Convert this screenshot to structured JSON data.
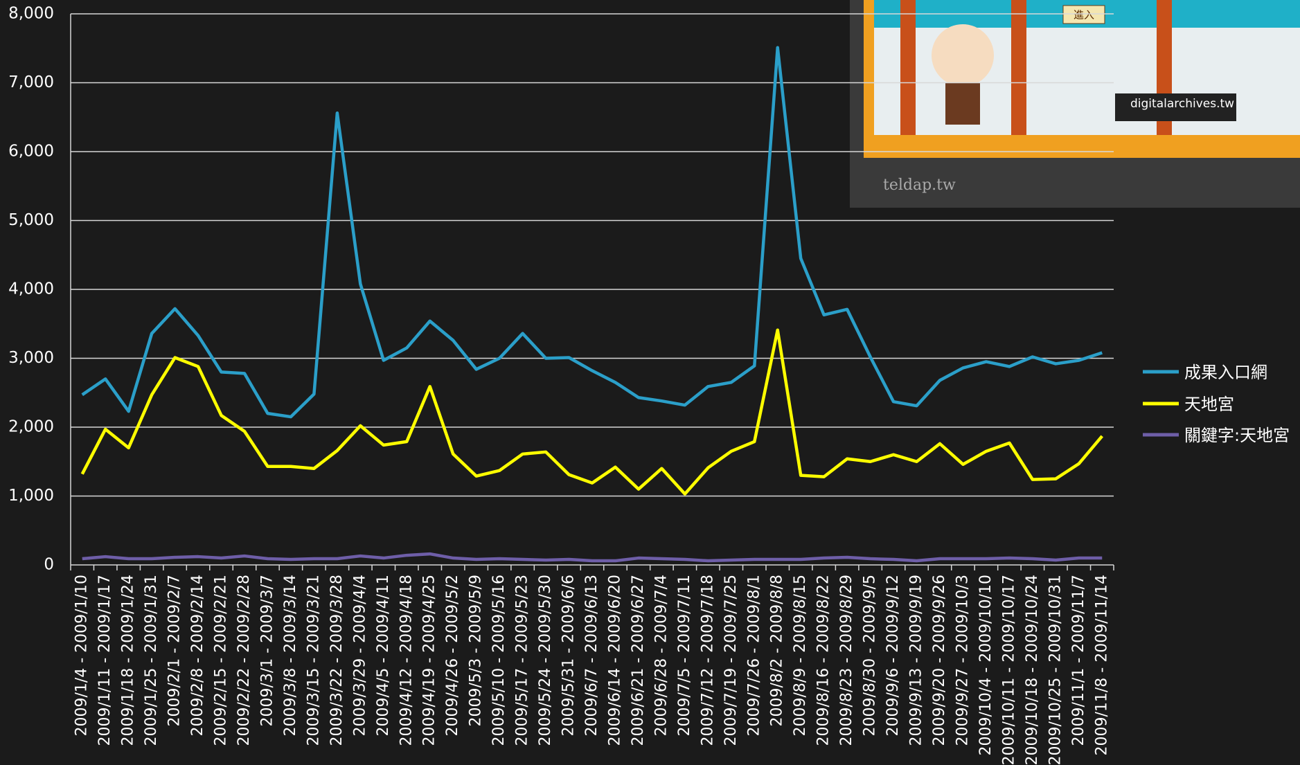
{
  "chart_data": {
    "type": "line",
    "categories": [
      "2009/1/4 - 2009/1/10",
      "2009/1/11 - 2009/1/17",
      "2009/1/18 - 2009/1/24",
      "2009/1/25 - 2009/1/31",
      "2009/2/1 - 2009/2/7",
      "2009/2/8 - 2009/2/14",
      "2009/2/15 - 2009/2/21",
      "2009/2/22 - 2009/2/28",
      "2009/3/1 - 2009/3/7",
      "2009/3/8 - 2009/3/14",
      "2009/3/15 - 2009/3/21",
      "2009/3/22 - 2009/3/28",
      "2009/3/29 - 2009/4/4",
      "2009/4/5 - 2009/4/11",
      "2009/4/12 - 2009/4/18",
      "2009/4/19 - 2009/4/25",
      "2009/4/26 - 2009/5/2",
      "2009/5/3 - 2009/5/9",
      "2009/5/10 - 2009/5/16",
      "2009/5/17 - 2009/5/23",
      "2009/5/24 - 2009/5/30",
      "2009/5/31 - 2009/6/6",
      "2009/6/7 - 2009/6/13",
      "2009/6/14 - 2009/6/20",
      "2009/6/21 - 2009/6/27",
      "2009/6/28 - 2009/7/4",
      "2009/7/5 - 2009/7/11",
      "2009/7/12 - 2009/7/18",
      "2009/7/19 - 2009/7/25",
      "2009/7/26 - 2009/8/1",
      "2009/8/2 - 2009/8/8",
      "2009/8/9 - 2009/8/15",
      "2009/8/16 - 2009/8/22",
      "2009/8/23 - 2009/8/29",
      "2009/8/30 - 2009/9/5",
      "2009/9/6 - 2009/9/12",
      "2009/9/13 - 2009/9/19",
      "2009/9/20 - 2009/9/26",
      "2009/9/27 - 2009/10/3",
      "2009/10/4 - 2009/10/10",
      "2009/10/11 - 2009/10/17",
      "2009/10/18 - 2009/10/24",
      "2009/10/25 - 2009/10/31",
      "2009/11/1 - 2009/11/7",
      "2009/11/8 - 2009/11/14"
    ],
    "series": [
      {
        "name": "成果入口網",
        "color": "#2b9fc9",
        "values": [
          2470,
          2700,
          2230,
          3360,
          3720,
          3330,
          2800,
          2780,
          2200,
          2150,
          2480,
          6560,
          4080,
          2970,
          3150,
          3540,
          3260,
          2840,
          3000,
          3360,
          3000,
          3010,
          2820,
          2650,
          2430,
          2380,
          2320,
          2590,
          2650,
          2890,
          7510,
          4450,
          3630,
          3710,
          3020,
          2370,
          2310,
          2680,
          2860,
          2950,
          2880,
          3020,
          2920,
          2970,
          3080
        ]
      },
      {
        "name": "天地宮",
        "color": "#ffff00",
        "values": [
          1320,
          1970,
          1700,
          2470,
          3010,
          2880,
          2170,
          1940,
          1430,
          1430,
          1400,
          1660,
          2020,
          1740,
          1790,
          2590,
          1610,
          1290,
          1370,
          1610,
          1640,
          1310,
          1190,
          1420,
          1100,
          1400,
          1030,
          1410,
          1650,
          1790,
          3410,
          1300,
          1280,
          1540,
          1500,
          1600,
          1500,
          1760,
          1460,
          1650,
          1770,
          1240,
          1250,
          1470,
          1870
        ]
      },
      {
        "name": "關鍵字:天地宮",
        "color": "#6e5ea8",
        "values": [
          90,
          120,
          90,
          90,
          110,
          120,
          100,
          130,
          90,
          80,
          90,
          90,
          130,
          100,
          140,
          160,
          100,
          80,
          90,
          80,
          70,
          80,
          60,
          60,
          100,
          90,
          80,
          60,
          70,
          80,
          80,
          80,
          100,
          110,
          90,
          80,
          60,
          90,
          90,
          90,
          100,
          90,
          70,
          100,
          100
        ]
      }
    ],
    "ylim": [
      0,
      8000
    ],
    "yticks": [
      {
        "value": 0,
        "label": "0"
      },
      {
        "value": 1000,
        "label": "1,000"
      },
      {
        "value": 2000,
        "label": "2,000"
      },
      {
        "value": 3000,
        "label": "3,000"
      },
      {
        "value": 4000,
        "label": "4,000"
      },
      {
        "value": 5000,
        "label": "5,000"
      },
      {
        "value": 6000,
        "label": "6,000"
      },
      {
        "value": 7000,
        "label": "7,000"
      },
      {
        "value": 8000,
        "label": "8,000"
      }
    ],
    "grid": true,
    "legend": "right"
  },
  "inset": {
    "texts": [
      "進入",
      "digitalarchives.tw",
      "teldap.tw"
    ]
  }
}
